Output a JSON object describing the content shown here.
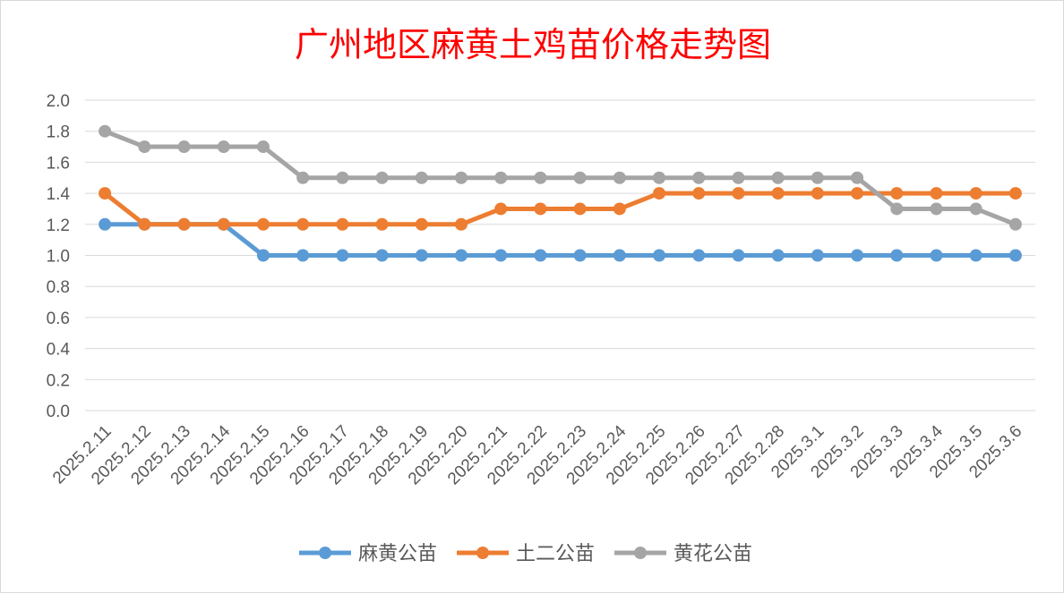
{
  "chart_data": {
    "type": "line",
    "title": "广州地区麻黄土鸡苗价格走势图",
    "xlabel": "",
    "ylabel": "",
    "ylim": [
      0,
      2.0
    ],
    "ytick_labels": [
      "0.0",
      "0.2",
      "0.4",
      "0.6",
      "0.8",
      "1.0",
      "1.2",
      "1.4",
      "1.6",
      "1.8",
      "2.0"
    ],
    "categories": [
      "2025.2.11",
      "2025.2.12",
      "2025.2.13",
      "2025.2.14",
      "2025.2.15",
      "2025.2.16",
      "2025.2.17",
      "2025.2.18",
      "2025.2.19",
      "2025.2.20",
      "2025.2.21",
      "2025.2.22",
      "2025.2.23",
      "2025.2.24",
      "2025.2.25",
      "2025.2.26",
      "2025.2.27",
      "2025.2.28",
      "2025.3.1",
      "2025.3.2",
      "2025.3.3",
      "2025.3.4",
      "2025.3.5",
      "2025.3.6"
    ],
    "series": [
      {
        "name": "麻黄公苗",
        "color": "#5b9bd5",
        "values": [
          1.2,
          1.2,
          1.2,
          1.2,
          1.0,
          1.0,
          1.0,
          1.0,
          1.0,
          1.0,
          1.0,
          1.0,
          1.0,
          1.0,
          1.0,
          1.0,
          1.0,
          1.0,
          1.0,
          1.0,
          1.0,
          1.0,
          1.0,
          1.0
        ]
      },
      {
        "name": "土二公苗",
        "color": "#ed7d31",
        "values": [
          1.4,
          1.2,
          1.2,
          1.2,
          1.2,
          1.2,
          1.2,
          1.2,
          1.2,
          1.2,
          1.3,
          1.3,
          1.3,
          1.3,
          1.4,
          1.4,
          1.4,
          1.4,
          1.4,
          1.4,
          1.4,
          1.4,
          1.4,
          1.4
        ]
      },
      {
        "name": "黄花公苗",
        "color": "#a5a5a5",
        "values": [
          1.8,
          1.7,
          1.7,
          1.7,
          1.7,
          1.5,
          1.5,
          1.5,
          1.5,
          1.5,
          1.5,
          1.5,
          1.5,
          1.5,
          1.5,
          1.5,
          1.5,
          1.5,
          1.5,
          1.5,
          1.3,
          1.3,
          1.3,
          1.2
        ]
      }
    ],
    "grid": true,
    "legend_position": "bottom"
  }
}
